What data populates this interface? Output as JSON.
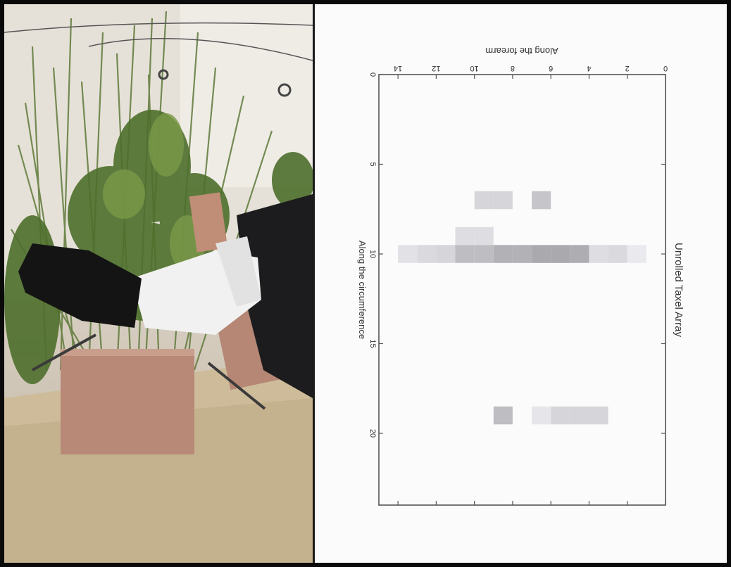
{
  "chart_data": {
    "type": "heatmap",
    "title": "Unrolled Taxel Array",
    "xlabel": "Along the circumference",
    "ylabel": "Along the forearm",
    "xlim": [
      0,
      24
    ],
    "ylim": [
      0,
      15
    ],
    "x_ticks": [
      "0",
      "5",
      "10",
      "15",
      "20"
    ],
    "y_ticks": [
      "0",
      "2",
      "4",
      "6",
      "8",
      "10",
      "12",
      "14"
    ],
    "cells": [
      {
        "circ": 7,
        "forearm": 9.5,
        "intensity": 0.18
      },
      {
        "circ": 7,
        "forearm": 8.5,
        "intensity": 0.18
      },
      {
        "circ": 7,
        "forearm": 6.5,
        "intensity": 0.26
      },
      {
        "circ": 9,
        "forearm": 10.5,
        "intensity": 0.14
      },
      {
        "circ": 9,
        "forearm": 9.5,
        "intensity": 0.14
      },
      {
        "circ": 10,
        "forearm": 13.5,
        "intensity": 0.12
      },
      {
        "circ": 10,
        "forearm": 12.5,
        "intensity": 0.16
      },
      {
        "circ": 10,
        "forearm": 11.5,
        "intensity": 0.18
      },
      {
        "circ": 10,
        "forearm": 10.5,
        "intensity": 0.3
      },
      {
        "circ": 10,
        "forearm": 9.5,
        "intensity": 0.3
      },
      {
        "circ": 10,
        "forearm": 8.5,
        "intensity": 0.36
      },
      {
        "circ": 10,
        "forearm": 7.5,
        "intensity": 0.36
      },
      {
        "circ": 10,
        "forearm": 6.5,
        "intensity": 0.4
      },
      {
        "circ": 10,
        "forearm": 5.5,
        "intensity": 0.4
      },
      {
        "circ": 10,
        "forearm": 4.5,
        "intensity": 0.38
      },
      {
        "circ": 10,
        "forearm": 3.5,
        "intensity": 0.14
      },
      {
        "circ": 10,
        "forearm": 2.5,
        "intensity": 0.16
      },
      {
        "circ": 10,
        "forearm": 1.5,
        "intensity": 0.08
      },
      {
        "circ": 19,
        "forearm": 8.5,
        "intensity": 0.3
      },
      {
        "circ": 19,
        "forearm": 6.5,
        "intensity": 0.1
      },
      {
        "circ": 19,
        "forearm": 5.5,
        "intensity": 0.18
      },
      {
        "circ": 19,
        "forearm": 4.5,
        "intensity": 0.18
      },
      {
        "circ": 19,
        "forearm": 3.5,
        "intensity": 0.18
      }
    ]
  }
}
